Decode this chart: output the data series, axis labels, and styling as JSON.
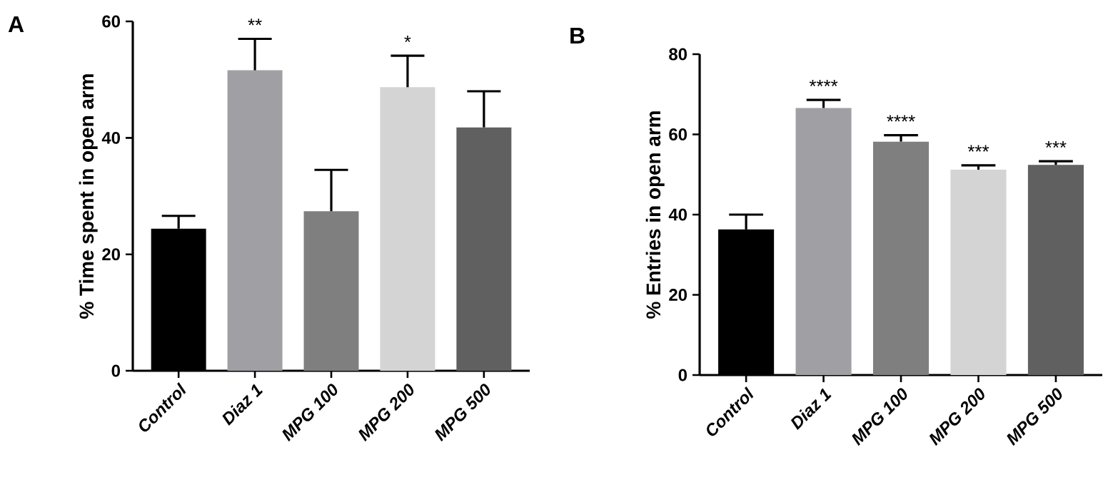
{
  "chart_data": [
    {
      "type": "bar",
      "title": "A",
      "ylabel": "% Time spent in open arm",
      "categories": [
        "Control",
        "Diaz 1",
        "MPG 100",
        "MPG 200",
        "MPG 500"
      ],
      "values": [
        24.4,
        51.6,
        27.4,
        48.7,
        41.8
      ],
      "colors": [
        "#000000",
        "#a0a0a4",
        "#7f7f7f",
        "#d4d4d4",
        "#606060"
      ],
      "errors": [
        [
          24.4,
          26.6
        ],
        [
          51.6,
          57.0
        ],
        [
          27.4,
          34.5
        ],
        [
          48.7,
          54.1
        ],
        [
          41.8,
          48.0
        ]
      ],
      "ylim": [
        0,
        60
      ],
      "yticks": [
        0,
        20,
        40,
        60
      ],
      "grid": false,
      "annotations": [
        {
          "text": "**",
          "x": "Diaz 1",
          "y": 57.0
        },
        {
          "text": "*",
          "x": "MPG 200",
          "y": 54.1
        }
      ]
    },
    {
      "type": "bar",
      "title": "B",
      "ylabel": "% Entries in open arm",
      "categories": [
        "Control",
        "Diaz 1",
        "MPG 100",
        "MPG 200",
        "MPG 500"
      ],
      "values": [
        36.3,
        66.6,
        58.2,
        51.2,
        52.4
      ],
      "colors": [
        "#000000",
        "#a0a0a4",
        "#7f7f7f",
        "#d4d4d4",
        "#606060"
      ],
      "errors": [
        [
          36.3,
          40.0
        ],
        [
          66.6,
          68.6
        ],
        [
          58.2,
          59.8
        ],
        [
          51.2,
          52.3
        ],
        [
          52.4,
          53.3
        ]
      ],
      "ylim": [
        0,
        80
      ],
      "yticks": [
        0,
        20,
        40,
        60,
        80
      ],
      "grid": false,
      "annotations": [
        {
          "text": "****",
          "x": "Diaz 1",
          "y": 68.6
        },
        {
          "text": "****",
          "x": "MPG 100",
          "y": 59.8
        },
        {
          "text": "***",
          "x": "MPG 200",
          "y": 52.3
        },
        {
          "text": "***",
          "x": "MPG 500",
          "y": 53.3
        }
      ]
    }
  ]
}
